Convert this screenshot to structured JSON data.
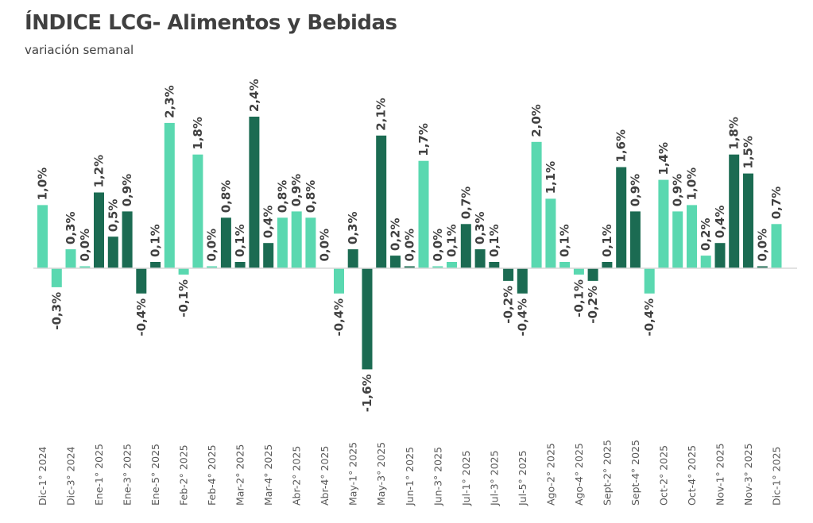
{
  "chart_data": {
    "type": "bar",
    "title": "ÍNDICE LCG- Alimentos y Bebidas",
    "subtitle": "variación semanal",
    "xlabel": "",
    "ylabel": "",
    "ylim": [
      -1.6,
      2.4
    ],
    "grid": false,
    "legend": "none",
    "colors": {
      "light": "#5ad8b0",
      "dark": "#1b6b52",
      "axis": "#d9d9d9",
      "text": "#404040"
    },
    "values": [
      1.0,
      -0.3,
      0.3,
      0.0,
      1.2,
      0.5,
      0.9,
      -0.4,
      0.1,
      2.3,
      -0.1,
      1.8,
      0.0,
      0.8,
      0.1,
      2.4,
      0.4,
      0.8,
      0.9,
      0.8,
      0.0,
      -0.4,
      0.3,
      -1.6,
      2.1,
      0.2,
      0.0,
      1.7,
      0.0,
      0.1,
      0.7,
      0.3,
      0.1,
      -0.2,
      -0.4,
      2.0,
      1.1,
      0.1,
      -0.1,
      -0.2,
      0.1,
      1.6,
      0.9,
      -0.4,
      1.4,
      0.9,
      1.0,
      0.2,
      0.4,
      1.8,
      1.5,
      0.0,
      0.7
    ],
    "data_labels": [
      "1,0%",
      "-0,3%",
      "0,3%",
      "0,0%",
      "1,2%",
      "0,5%",
      "0,9%",
      "-0,4%",
      "0,1%",
      "2,3%",
      "-0,1%",
      "1,8%",
      "0,0%",
      "0,8%",
      "0,1%",
      "2,4%",
      "0,4%",
      "0,8%",
      "0,9%",
      "0,8%",
      "0,0%",
      "-0,4%",
      "0,3%",
      "-1,6%",
      "2,1%",
      "0,2%",
      "0,0%",
      "1,7%",
      "0,0%",
      "0,1%",
      "0,7%",
      "0,3%",
      "0,1%",
      "-0,2%",
      "-0,4%",
      "2,0%",
      "1,1%",
      "0,1%",
      "-0,1%",
      "-0,2%",
      "0,1%",
      "1,6%",
      "0,9%",
      "-0,4%",
      "1,4%",
      "0,9%",
      "1,0%",
      "0,2%",
      "0,4%",
      "1,8%",
      "1,5%",
      "0,0%",
      "0,7%"
    ],
    "bar_colors": [
      "light",
      "light",
      "light",
      "light",
      "dark",
      "dark",
      "dark",
      "dark",
      "dark",
      "light",
      "light",
      "light",
      "light",
      "dark",
      "dark",
      "dark",
      "dark",
      "light",
      "light",
      "light",
      "light",
      "light",
      "dark",
      "dark",
      "dark",
      "dark",
      "dark",
      "light",
      "light",
      "light",
      "dark",
      "dark",
      "dark",
      "dark",
      "dark",
      "light",
      "light",
      "light",
      "light",
      "dark",
      "dark",
      "dark",
      "dark",
      "light",
      "light",
      "light",
      "light",
      "light",
      "dark",
      "dark",
      "dark",
      "dark",
      "light"
    ],
    "tick_labels": [
      "Dic-1° 2024",
      "Dic-3° 2024",
      "Ene-1° 2025",
      "Ene-3° 2025",
      "Ene-5° 2025",
      "Feb-2° 2025",
      "Feb-4° 2025",
      "Mar-2° 2025",
      "Mar-4° 2025",
      "Abr-2° 2025",
      "Abr-4° 2025",
      "May-1° 2025",
      "May-3° 2025",
      "Jun-1° 2025",
      "Jun-3° 2025",
      "Jul-1° 2025",
      "Jul-3° 2025",
      "Jul-5° 2025",
      "Ago-2° 2025",
      "Ago-4° 2025",
      "Sept-2° 2025",
      "Sept-4° 2025",
      "Oct-2° 2025",
      "Oct-4° 2025",
      "Nov-1° 2025",
      "Nov-3° 2025",
      "Dic-1° 2025"
    ]
  }
}
